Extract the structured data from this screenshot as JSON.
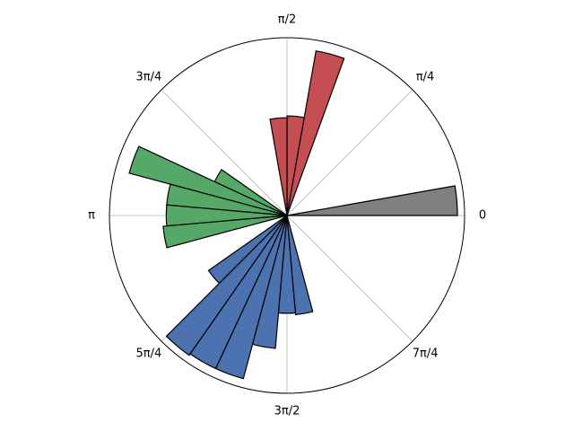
{
  "chart_data": {
    "type": "polar-bar",
    "radial_range": [
      0,
      1
    ],
    "grid": true,
    "angle_ticks": [
      {
        "angle_deg": 0,
        "label": "0"
      },
      {
        "angle_deg": 45,
        "label": "π/4"
      },
      {
        "angle_deg": 90,
        "label": "π/2"
      },
      {
        "angle_deg": 135,
        "label": "3π/4"
      },
      {
        "angle_deg": 180,
        "label": "π"
      },
      {
        "angle_deg": 225,
        "label": "5π/4"
      },
      {
        "angle_deg": 270,
        "label": "3π/2"
      },
      {
        "angle_deg": 315,
        "label": "7π/4"
      }
    ],
    "groups": [
      {
        "color": "#808080",
        "bars": [
          {
            "start_deg": 0,
            "end_deg": 10,
            "r": 0.96
          }
        ]
      },
      {
        "color": "#c44e52",
        "bars": [
          {
            "start_deg": 80,
            "end_deg": 90,
            "r": 0.56
          },
          {
            "start_deg": 90,
            "end_deg": 100,
            "r": 0.55
          },
          {
            "start_deg": 70,
            "end_deg": 80,
            "r": 0.94
          }
        ]
      },
      {
        "color": "#55a868",
        "bars": [
          {
            "start_deg": 145,
            "end_deg": 155,
            "r": 0.45
          },
          {
            "start_deg": 155,
            "end_deg": 165,
            "r": 0.92
          },
          {
            "start_deg": 165,
            "end_deg": 175,
            "r": 0.68
          },
          {
            "start_deg": 175,
            "end_deg": 185,
            "r": 0.68
          },
          {
            "start_deg": 185,
            "end_deg": 195,
            "r": 0.7
          }
        ]
      },
      {
        "color": "#4c72b0",
        "bars": [
          {
            "start_deg": 215,
            "end_deg": 225,
            "r": 0.54
          },
          {
            "start_deg": 225,
            "end_deg": 235,
            "r": 0.96
          },
          {
            "start_deg": 235,
            "end_deg": 245,
            "r": 0.95
          },
          {
            "start_deg": 245,
            "end_deg": 255,
            "r": 0.95
          },
          {
            "start_deg": 255,
            "end_deg": 265,
            "r": 0.75
          },
          {
            "start_deg": 265,
            "end_deg": 275,
            "r": 0.55
          },
          {
            "start_deg": 275,
            "end_deg": 285,
            "r": 0.56
          }
        ]
      }
    ]
  }
}
